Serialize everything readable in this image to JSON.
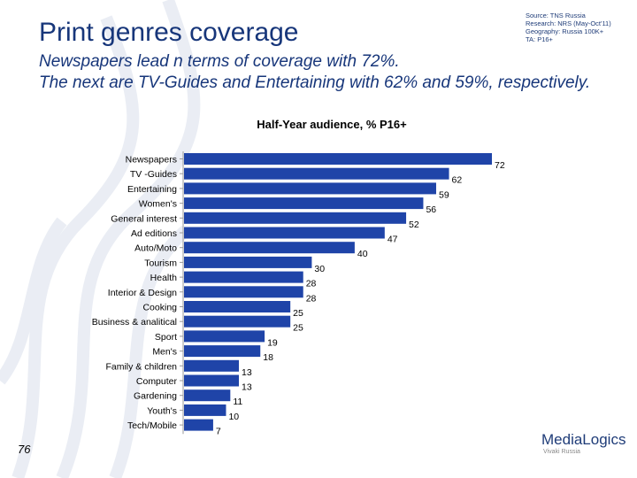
{
  "slide": {
    "title": "Print genres coverage",
    "source_lines": [
      "Source: TNS Russia",
      "Research: NRS (May-Oct'11)",
      "Geography: Russia 100K+",
      "TA: P16+"
    ],
    "subtitle_lines": [
      "Newspapers lead n terms of coverage with 72%.",
      "The next are TV-Guides and Entertaining with 62% and 59%, respectively."
    ],
    "page_number": "76",
    "logo_text": "MediaLogics",
    "logo_subtext": "Vivaki Russia",
    "bar_color": "#1f44a8"
  },
  "chart_data": {
    "type": "bar",
    "orientation": "horizontal",
    "title": "Half-Year audience, % P16+",
    "categories": [
      "Newspapers",
      "TV -Guides",
      "Entertaining",
      "Women's",
      "General interest",
      "Ad editions",
      "Auto/Moto",
      "Tourism",
      "Health",
      "Interior & Design",
      "Cooking",
      "Business & analitical",
      "Sport",
      "Men's",
      "Family & children",
      "Computer",
      "Gardening",
      "Youth's",
      "Tech/Mobile"
    ],
    "values": [
      72,
      62,
      59,
      56,
      52,
      47,
      40,
      30,
      28,
      28,
      25,
      25,
      19,
      18,
      13,
      13,
      11,
      10,
      7
    ],
    "xlim": [
      0,
      72
    ],
    "grid": false,
    "legend": "none"
  }
}
